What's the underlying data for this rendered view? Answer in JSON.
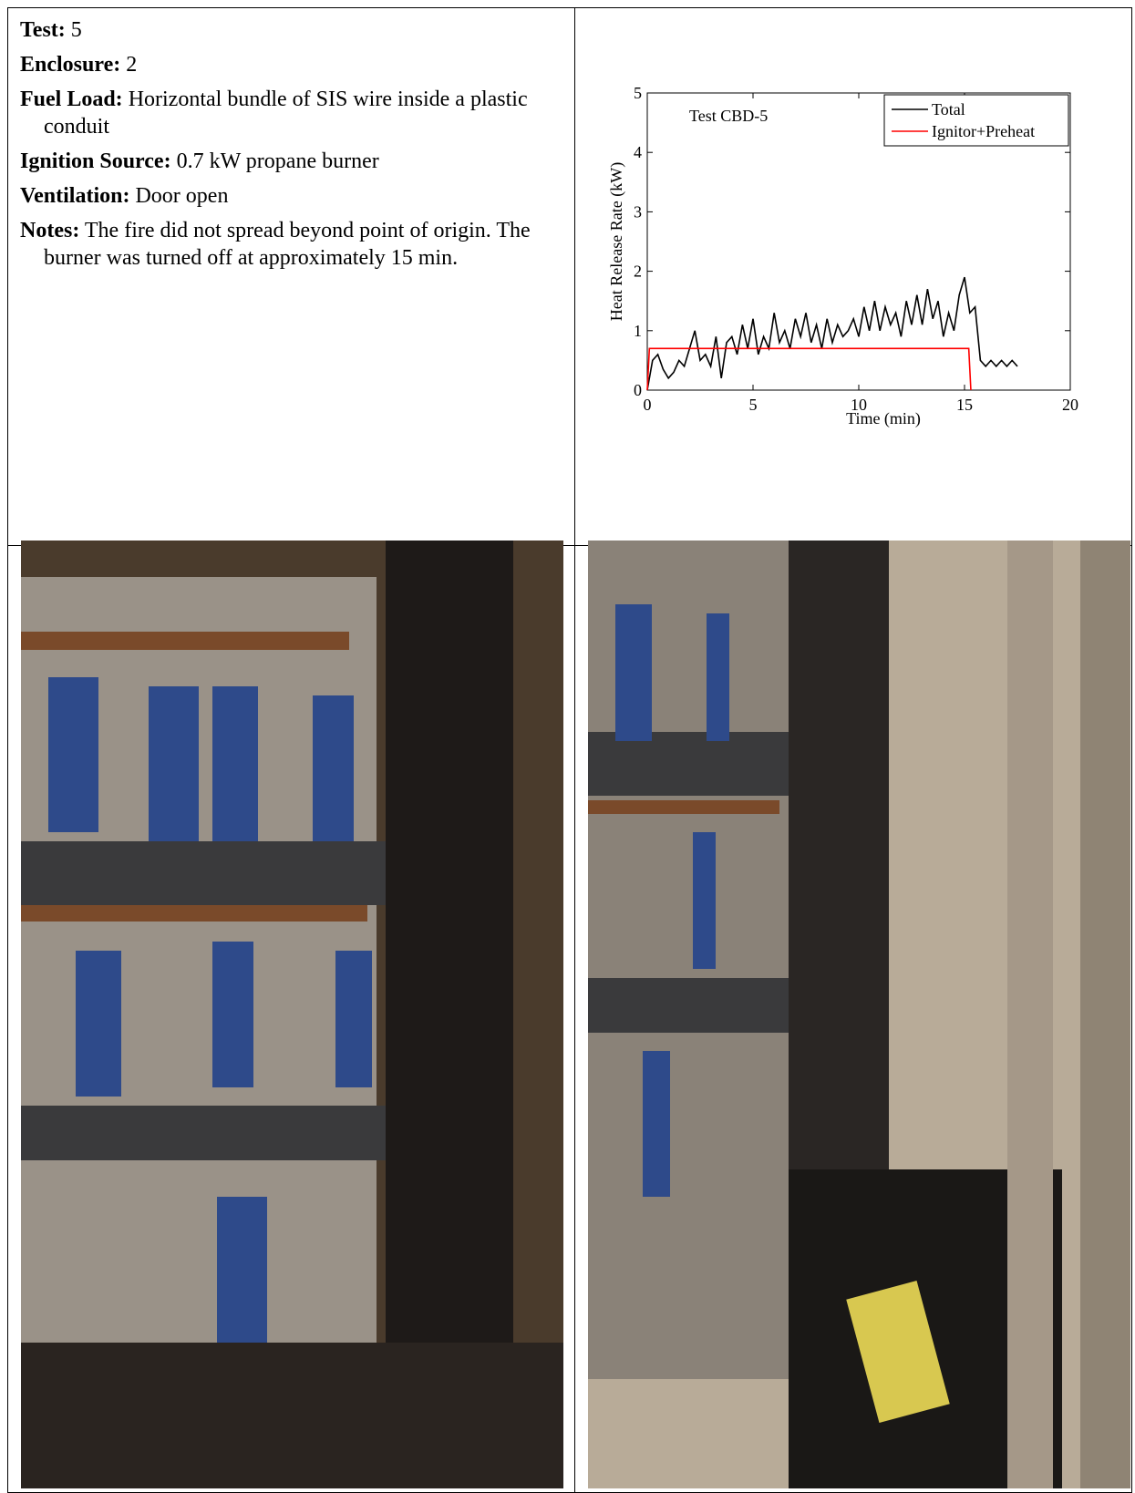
{
  "document": {
    "fields": [
      {
        "label": "Test:",
        "value": "5"
      },
      {
        "label": "Enclosure:",
        "value": "2"
      },
      {
        "label": "Fuel Load:",
        "value": "Horizontal bundle of SIS wire inside a plastic conduit"
      },
      {
        "label": "Ignition Source:",
        "value": "0.7 kW propane burner"
      },
      {
        "label": "Ventilation:",
        "value": "Door open"
      },
      {
        "label": "Notes:",
        "value": "The fire did not spread beyond point of origin. The burner was turned off at approximately 15 min."
      }
    ]
  },
  "chart_data": {
    "type": "line",
    "annotation": "Test CBD-5",
    "xlabel": "Time (min)",
    "ylabel": "Heat Release Rate (kW)",
    "xlim": [
      0,
      20
    ],
    "xticks": [
      0,
      5,
      10,
      15,
      20
    ],
    "ylim": [
      0,
      5
    ],
    "yticks": [
      0,
      1,
      2,
      3,
      4,
      5
    ],
    "legend": "top-right",
    "series": [
      {
        "name": "Total",
        "color": "#000000",
        "x": [
          0,
          0.25,
          0.5,
          0.75,
          1,
          1.25,
          1.5,
          1.75,
          2,
          2.25,
          2.5,
          2.75,
          3,
          3.25,
          3.5,
          3.75,
          4,
          4.25,
          4.5,
          4.75,
          5,
          5.25,
          5.5,
          5.75,
          6,
          6.25,
          6.5,
          6.75,
          7,
          7.25,
          7.5,
          7.75,
          8,
          8.25,
          8.5,
          8.75,
          9,
          9.25,
          9.5,
          9.75,
          10,
          10.25,
          10.5,
          10.75,
          11,
          11.25,
          11.5,
          11.75,
          12,
          12.25,
          12.5,
          12.75,
          13,
          13.25,
          13.5,
          13.75,
          14,
          14.25,
          14.5,
          14.75,
          15,
          15.25,
          15.5,
          15.75,
          16,
          16.25,
          16.5,
          16.75,
          17,
          17.25,
          17.5
        ],
        "values": [
          0,
          0.5,
          0.6,
          0.35,
          0.2,
          0.3,
          0.5,
          0.4,
          0.7,
          1.0,
          0.5,
          0.6,
          0.4,
          0.9,
          0.2,
          0.8,
          0.9,
          0.6,
          1.1,
          0.7,
          1.2,
          0.6,
          0.9,
          0.7,
          1.3,
          0.8,
          1.0,
          0.7,
          1.2,
          0.9,
          1.3,
          0.8,
          1.1,
          0.7,
          1.2,
          0.8,
          1.1,
          0.9,
          1.0,
          1.2,
          0.9,
          1.4,
          1.0,
          1.5,
          1.0,
          1.4,
          1.1,
          1.3,
          0.9,
          1.5,
          1.1,
          1.6,
          1.1,
          1.7,
          1.2,
          1.5,
          0.9,
          1.3,
          1.0,
          1.6,
          1.9,
          1.3,
          1.4,
          0.5,
          0.4,
          0.5,
          0.4,
          0.5,
          0.4,
          0.5,
          0.4
        ]
      },
      {
        "name": "Ignitor+Preheat",
        "color": "#ff0000",
        "x": [
          0,
          0.1,
          15.2,
          15.3
        ],
        "values": [
          0,
          0.7,
          0.7,
          0
        ]
      }
    ]
  }
}
